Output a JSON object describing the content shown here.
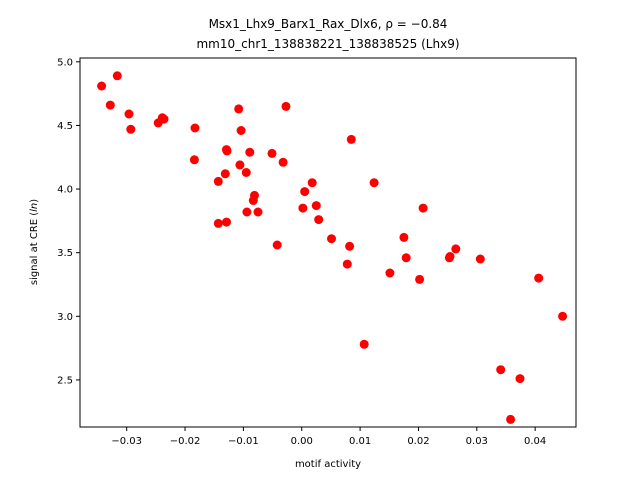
{
  "chart_data": {
    "type": "scatter",
    "title_line1": "Msx1_Lhx9_Barx1_Rax_Dlx6, ρ = −0.84",
    "title_line2": "mm10_chr1_138838221_138838525 (Lhx9)",
    "xlabel": "motif activity",
    "ylabel": "signal at CRE (ln)",
    "xlim": [
      -0.038,
      0.047
    ],
    "ylim": [
      2.13,
      5.03
    ],
    "xticks": [
      -0.03,
      -0.02,
      -0.01,
      0.0,
      0.01,
      0.02,
      0.03,
      0.04
    ],
    "xtick_labels": [
      "−0.03",
      "−0.02",
      "−0.01",
      "0.00",
      "0.01",
      "0.02",
      "0.03",
      "0.04"
    ],
    "yticks": [
      2.5,
      3.0,
      3.5,
      4.0,
      4.5,
      5.0
    ],
    "ytick_labels": [
      "2.5",
      "3.0",
      "3.5",
      "4.0",
      "4.5",
      "5.0"
    ],
    "grid": false,
    "marker_color": "#ff0000",
    "points": [
      [
        -0.0343,
        4.81
      ],
      [
        -0.0316,
        4.89
      ],
      [
        -0.0328,
        4.66
      ],
      [
        -0.0296,
        4.59
      ],
      [
        -0.0293,
        4.47
      ],
      [
        -0.0246,
        4.52
      ],
      [
        -0.0239,
        4.56
      ],
      [
        -0.0236,
        4.55
      ],
      [
        -0.0183,
        4.48
      ],
      [
        -0.0184,
        4.23
      ],
      [
        -0.0129,
        4.31
      ],
      [
        -0.0128,
        4.3
      ],
      [
        -0.0108,
        4.63
      ],
      [
        -0.0104,
        4.46
      ],
      [
        -0.0027,
        4.65
      ],
      [
        -0.0051,
        4.28
      ],
      [
        -0.0032,
        4.21
      ],
      [
        -0.0106,
        4.19
      ],
      [
        -0.0095,
        4.13
      ],
      [
        -0.0089,
        4.29
      ],
      [
        -0.0143,
        4.06
      ],
      [
        -0.0131,
        4.12
      ],
      [
        -0.0083,
        3.91
      ],
      [
        -0.0081,
        3.95
      ],
      [
        -0.0075,
        3.82
      ],
      [
        -0.0094,
        3.82
      ],
      [
        -0.0129,
        3.74
      ],
      [
        -0.0143,
        3.73
      ],
      [
        0.0005,
        3.98
      ],
      [
        0.0018,
        4.05
      ],
      [
        0.0025,
        3.87
      ],
      [
        0.0002,
        3.85
      ],
      [
        0.0029,
        3.76
      ],
      [
        0.0085,
        4.39
      ],
      [
        0.0124,
        4.05
      ],
      [
        -0.0042,
        3.56
      ],
      [
        0.0051,
        3.61
      ],
      [
        0.0082,
        3.55
      ],
      [
        0.0078,
        3.41
      ],
      [
        0.0208,
        3.85
      ],
      [
        0.0175,
        3.62
      ],
      [
        0.0179,
        3.46
      ],
      [
        0.0151,
        3.34
      ],
      [
        0.0202,
        3.29
      ],
      [
        0.0254,
        3.47
      ],
      [
        0.0253,
        3.46
      ],
      [
        0.0264,
        3.53
      ],
      [
        0.0306,
        3.45
      ],
      [
        0.0406,
        3.3
      ],
      [
        0.0447,
        3.0
      ],
      [
        0.0107,
        2.78
      ],
      [
        0.0341,
        2.58
      ],
      [
        0.0374,
        2.51
      ],
      [
        0.0358,
        2.19
      ]
    ]
  }
}
